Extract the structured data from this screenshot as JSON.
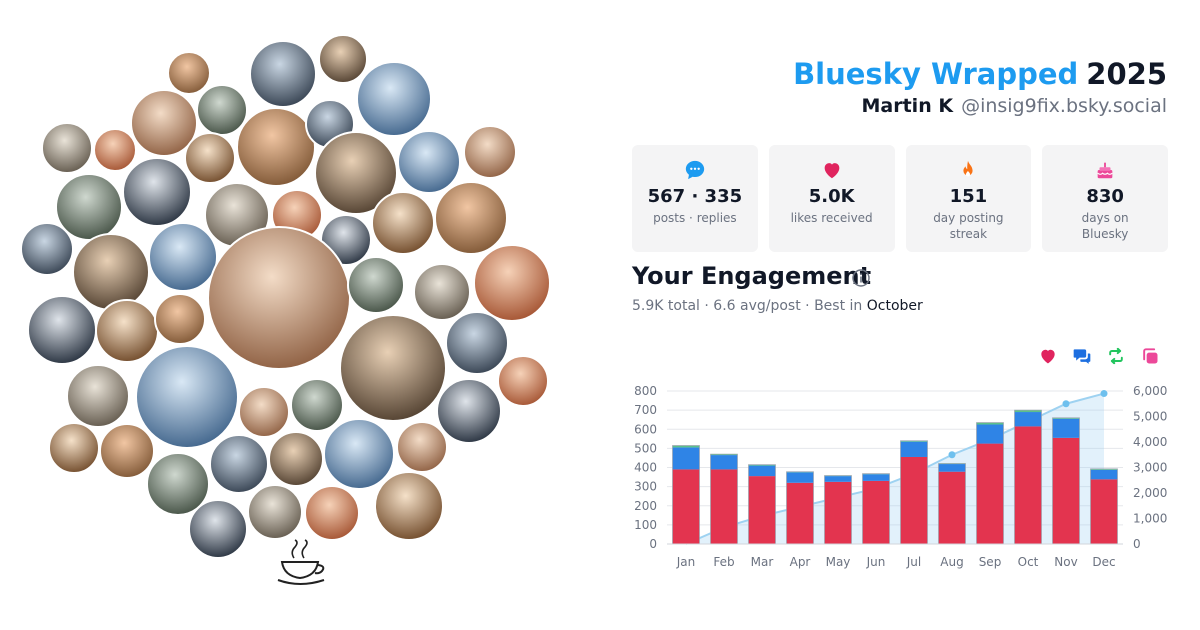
{
  "header": {
    "brand": "Bluesky Wrapped",
    "year": "2025",
    "name": "Martin K",
    "handle": "@insig9fix.bsky.social"
  },
  "stats": [
    {
      "value": "567 · 335",
      "label": "posts · replies",
      "icon": "chat-bubble-icon",
      "color": "#1d9bf0"
    },
    {
      "value": "5.0K",
      "label": "likes received",
      "icon": "heart-icon",
      "color": "#e0245e"
    },
    {
      "value": "151",
      "label": "day posting streak",
      "icon": "flame-icon",
      "color": "#f97316"
    },
    {
      "value": "830",
      "label": "days on Bluesky",
      "icon": "cake-icon",
      "color": "#ec4899"
    }
  ],
  "engagement": {
    "title": "Your Engagement",
    "total": "5.9K",
    "total_word": "total",
    "avg": "6.6 avg/post",
    "best_prefix": "Best in",
    "best_month": "October"
  },
  "legend_icons": [
    {
      "icon": "heart-icon",
      "color": "#e0245e"
    },
    {
      "icon": "reply-icon",
      "color": "#1d6fe0"
    },
    {
      "icon": "repost-icon",
      "color": "#22c55e"
    },
    {
      "icon": "quote-icon",
      "color": "#ec4899"
    }
  ],
  "colors": {
    "likes": "#e3344f",
    "replies": "#2f84e6",
    "reposts": "#5cc08b",
    "cumulative": "#9ed2f1"
  },
  "chart_data": {
    "type": "bar",
    "categories": [
      "Jan",
      "Feb",
      "Mar",
      "Apr",
      "May",
      "Jun",
      "Jul",
      "Aug",
      "Sep",
      "Oct",
      "Nov",
      "Dec"
    ],
    "series": [
      {
        "values": [
          390,
          390,
          355,
          320,
          325,
          330,
          455,
          378,
          525,
          615,
          555,
          338
        ]
      },
      {
        "values": [
          115,
          75,
          55,
          55,
          30,
          35,
          80,
          40,
          100,
          75,
          100,
          50
        ]
      },
      {
        "values": [
          10,
          5,
          5,
          3,
          3,
          3,
          5,
          3,
          10,
          10,
          5,
          5
        ]
      }
    ],
    "cumulative": [
      0,
      650,
      1100,
      1460,
      1820,
      2180,
      2760,
      3500,
      4100,
      4800,
      5500,
      5900
    ],
    "ylim": [
      0,
      800
    ],
    "yticks": [
      0,
      100,
      200,
      300,
      400,
      500,
      600,
      700,
      800
    ],
    "y2lim": [
      0,
      6000
    ],
    "y2ticks": [
      "0",
      "1,000",
      "2,000",
      "3,000",
      "4,000",
      "5,000",
      "6,000"
    ],
    "grid": true
  }
}
